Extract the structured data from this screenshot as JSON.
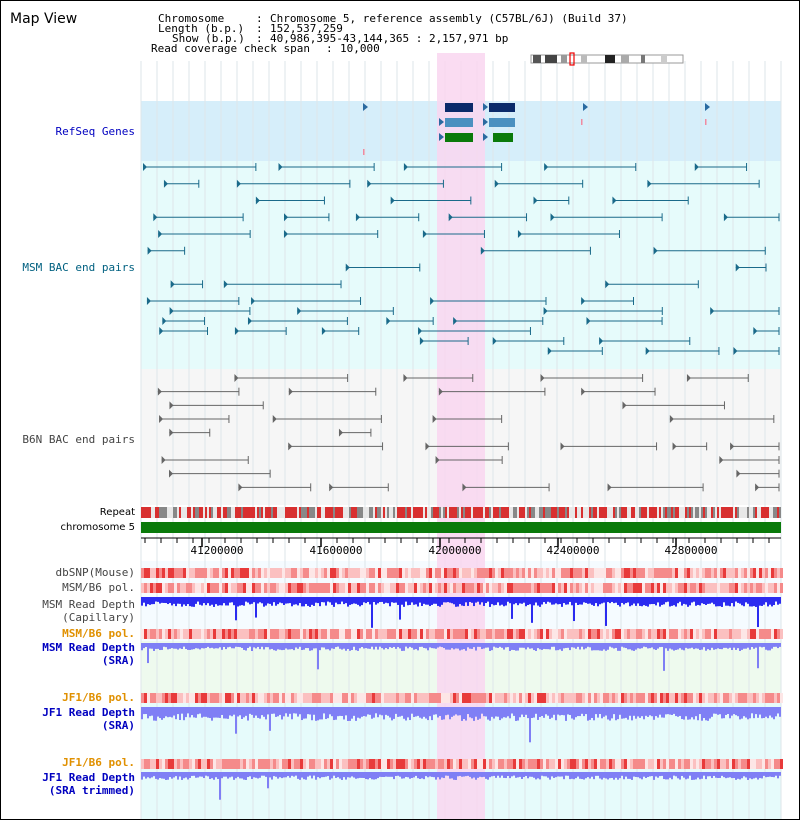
{
  "title": "Map View",
  "header": {
    "chromosome_label": "Chromosome",
    "chromosome_value": "Chromosome 5, reference assembly (C57BL/6J) (Build 37)",
    "length_label": "Length (b.p.)",
    "length_value": "152,537,259",
    "show_label": "Show (b.p.)",
    "show_value": "40,986,395-43,144,365 : 2,157,971 bp",
    "coverage_label": "Read coverage check span",
    "coverage_value": "10,000"
  },
  "tracks": {
    "refseq": "RefSeq Genes",
    "msm_bac": "MSM BAC end pairs",
    "b6n_bac": "B6N BAC end pairs",
    "repeat": "Repeat",
    "chromosome": "chromosome 5",
    "dbsnp": "dbSNP(Mouse)",
    "msm_b6_pol": "MSM/B6 pol.",
    "msm_depth_cap_1": "MSM Read Depth",
    "msm_depth_cap_2": "(Capillary)",
    "msm_b6_pol_2": "MSM/B6 pol.",
    "msm_depth_sra_1": "MSM Read Depth",
    "msm_depth_sra_2": "(SRA)",
    "jf1_pol": "JF1/B6 pol.",
    "jf1_depth_1": "JF1 Read Depth",
    "jf1_depth_2": "(SRA)",
    "jf1_pol_2": "JF1/B6 pol.",
    "jf1_trim_1": "JF1 Read Depth",
    "jf1_trim_2": "(SRA trimmed)"
  },
  "axis": {
    "ticks": [
      "41200000",
      "41600000",
      "42000000",
      "42400000",
      "42800000"
    ]
  },
  "colors": {
    "highlight": "#f9d6f0",
    "refseq_bg": "#d6eefa",
    "msm_bg": "#e6fbfb",
    "b6n_bg": "#f6f6f6",
    "chrom_bar": "#0a7a0a",
    "depth_blue": "#2b2bf0",
    "depth_light": "#7f7ff5",
    "msm_label": "#006080",
    "refseq_label": "#0000c0",
    "orange_label": "#e09000",
    "blue_label": "#0000c0"
  }
}
